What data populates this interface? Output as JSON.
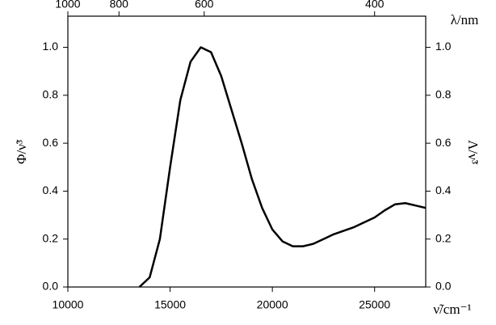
{
  "chart_data": {
    "type": "line",
    "x_label": "ν̃/cm⁻¹",
    "x2_label": "λ/nm",
    "y_label": "Φ/ν̃³",
    "y2_label": "Λ/ν̃³",
    "x": [
      13500,
      14000,
      14500,
      15000,
      15500,
      16000,
      16500,
      17000,
      17500,
      18000,
      18500,
      19000,
      19500,
      20000,
      20500,
      21000,
      21500,
      22000,
      22500,
      23000,
      24000,
      25000,
      25500,
      26000,
      26500,
      27000,
      27500
    ],
    "series": [
      {
        "color": "#000000",
        "values": [
          0,
          0.04,
          0.2,
          0.5,
          0.78,
          0.94,
          1.0,
          0.98,
          0.88,
          0.74,
          0.6,
          0.45,
          0.33,
          0.24,
          0.19,
          0.17,
          0.17,
          0.18,
          0.2,
          0.22,
          0.25,
          0.29,
          0.32,
          0.345,
          0.35,
          0.34,
          0.33
        ]
      }
    ],
    "xlim": [
      10000,
      27500
    ],
    "xticks": [
      10000,
      15000,
      20000,
      25000
    ],
    "x2ticks": [
      1000,
      800,
      600,
      400
    ],
    "ylim": [
      0,
      1.13
    ],
    "yticks": [
      {
        "value": 0,
        "label": "0.0"
      },
      0.2,
      0.4,
      0.6,
      0.8,
      {
        "value": 1,
        "label": "1.0"
      }
    ],
    "y2ticks": [
      {
        "value": 0,
        "label": "0.0"
      },
      0.2,
      0.4,
      0.6,
      0.8,
      {
        "value": 1,
        "label": "1.0"
      }
    ]
  }
}
